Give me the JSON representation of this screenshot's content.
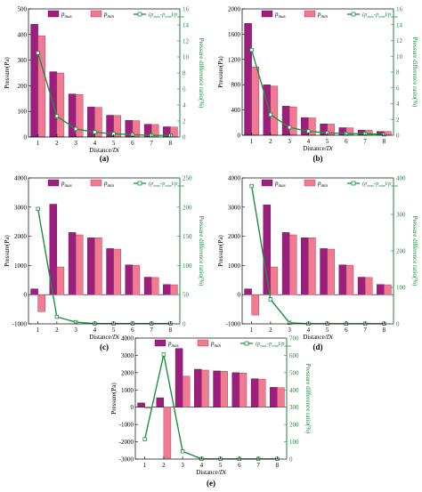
{
  "colors": {
    "pmax": "#9b1f7d",
    "pmin": "#f07a92",
    "ratio": "#1f8f3f",
    "axis_right": "#1a8a3a"
  },
  "legend": {
    "pmax": "p",
    "pmax_sub": "max",
    "pmin": "p",
    "pmin_sub": "min",
    "ratio": "(p",
    "ratio_a": "max",
    "ratio_mid": "-p",
    "ratio_b": "min",
    "ratio_end": ")/p",
    "ratio_c": "max"
  },
  "chart_data": [
    {
      "panel": "(a)",
      "type": "bar",
      "categories": [
        "1",
        "2",
        "3",
        "4",
        "5",
        "6",
        "7",
        "8"
      ],
      "xlabel_main": "Distance/",
      "xlabel_ital": "Di",
      "ylabel": "Pressure(Pa)",
      "y2label": "Pressure difference ratio(%)",
      "ylim": [
        0,
        500
      ],
      "yticks": [
        "0",
        "100",
        "200",
        "300",
        "400",
        "500"
      ],
      "y2lim": [
        0,
        16
      ],
      "y2ticks": [
        "0",
        "2",
        "4",
        "6",
        "8",
        "10",
        "12",
        "14",
        "16"
      ],
      "series": [
        {
          "name": "p max",
          "values": [
            440,
            255,
            168,
            117,
            85,
            65,
            50,
            40
          ]
        },
        {
          "name": "p min",
          "values": [
            395,
            250,
            166,
            116,
            84,
            64,
            49,
            39
          ]
        },
        {
          "name": "ratio",
          "axis": "right",
          "values": [
            10.5,
            2.6,
            1.0,
            0.6,
            0.4,
            0.3,
            0.2,
            0.2
          ]
        }
      ]
    },
    {
      "panel": "(b)",
      "type": "bar",
      "categories": [
        "1",
        "2",
        "3",
        "4",
        "5",
        "6",
        "7",
        "8"
      ],
      "xlabel_main": "Distance/",
      "xlabel_ital": "Di",
      "ylabel": "Pressure(Pa)",
      "y2label": "Pressure difference ratio(%)",
      "ylim": [
        0,
        2000
      ],
      "yticks": [
        "0",
        "400",
        "800",
        "1200",
        "1600",
        "2000"
      ],
      "y2lim": [
        0,
        16
      ],
      "y2ticks": [
        "0",
        "2",
        "4",
        "6",
        "8",
        "10",
        "12",
        "14",
        "16"
      ],
      "series": [
        {
          "name": "p max",
          "values": [
            1770,
            800,
            460,
            280,
            180,
            120,
            80,
            60
          ]
        },
        {
          "name": "p min",
          "values": [
            1080,
            780,
            450,
            275,
            177,
            118,
            79,
            59
          ]
        },
        {
          "name": "ratio",
          "axis": "right",
          "values": [
            10.8,
            2.6,
            1.0,
            0.5,
            0.3,
            0.2,
            0.2,
            0.1
          ]
        }
      ]
    },
    {
      "panel": "(c)",
      "type": "bar",
      "categories": [
        "1",
        "2",
        "3",
        "4",
        "5",
        "6",
        "7",
        "8"
      ],
      "xlabel_main": "Distance/",
      "xlabel_ital": "Di",
      "ylabel": "Pressure(Pa)",
      "y2label": "Pressure difference ratio(%)",
      "ylim": [
        -1000,
        4000
      ],
      "yticks": [
        "-1000",
        "0",
        "1000",
        "2000",
        "3000",
        "4000"
      ],
      "y2lim": [
        0,
        250
      ],
      "y2ticks": [
        "0",
        "50",
        "100",
        "150",
        "200",
        "250"
      ],
      "series": [
        {
          "name": "p max",
          "values": [
            200,
            3100,
            2130,
            1950,
            1580,
            1020,
            600,
            350
          ]
        },
        {
          "name": "p min",
          "values": [
            -580,
            950,
            2050,
            1950,
            1560,
            1010,
            590,
            340
          ]
        },
        {
          "name": "ratio",
          "axis": "right",
          "values": [
            197,
            12,
            3,
            0.5,
            0.5,
            0.5,
            0.5,
            0.5
          ]
        }
      ]
    },
    {
      "panel": "(d)",
      "type": "bar",
      "categories": [
        "1",
        "2",
        "3",
        "4",
        "5",
        "6",
        "7",
        "8"
      ],
      "xlabel_main": "Distance/",
      "xlabel_ital": "Di",
      "ylabel": "Pressure(Pa)",
      "y2label": "Pressure difference ratio(%)",
      "ylim": [
        -1000,
        4000
      ],
      "yticks": [
        "-1000",
        "0",
        "1000",
        "2000",
        "3000",
        "4000"
      ],
      "y2lim": [
        0,
        400
      ],
      "y2ticks": [
        "0",
        "100",
        "200",
        "300",
        "400"
      ],
      "series": [
        {
          "name": "p max",
          "values": [
            200,
            3080,
            2130,
            1950,
            1580,
            1020,
            600,
            350
          ]
        },
        {
          "name": "p min",
          "values": [
            -700,
            950,
            2050,
            1950,
            1560,
            1010,
            590,
            340
          ]
        },
        {
          "name": "ratio",
          "axis": "right",
          "values": [
            378,
            67,
            3,
            0.5,
            0.5,
            0.5,
            0.5,
            0.5
          ]
        }
      ]
    },
    {
      "panel": "(e)",
      "type": "bar",
      "categories": [
        "1",
        "2",
        "3",
        "4",
        "5",
        "6",
        "7",
        "8"
      ],
      "xlabel_main": "Distance/",
      "xlabel_ital": "Di",
      "ylabel": "Pressure(Pa)",
      "y2label": "Pressure difference ratio(%)",
      "ylim": [
        -3000,
        4000
      ],
      "yticks": [
        "-3000",
        "-2000",
        "-1000",
        "0",
        "1000",
        "2000",
        "3000",
        "4000"
      ],
      "y2lim": [
        0,
        700
      ],
      "y2ticks": [
        "0",
        "100",
        "200",
        "300",
        "400",
        "500",
        "600",
        "700"
      ],
      "series": [
        {
          "name": "p max",
          "values": [
            250,
            550,
            3400,
            2200,
            2100,
            2000,
            1650,
            1150
          ]
        },
        {
          "name": "p min",
          "values": [
            -50,
            -2950,
            1800,
            2150,
            2080,
            1980,
            1630,
            1130
          ]
        },
        {
          "name": "ratio",
          "axis": "right",
          "values": [
            115,
            605,
            45,
            1,
            1,
            1,
            1,
            1
          ]
        }
      ]
    }
  ]
}
